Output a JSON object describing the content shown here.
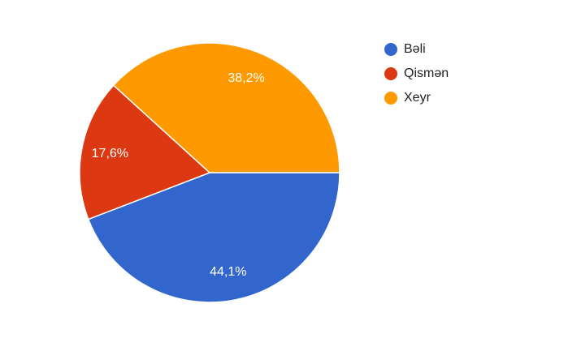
{
  "chart_data": {
    "type": "pie",
    "categories": [
      "Bəli",
      "Qismən",
      "Xeyr"
    ],
    "values": [
      44.1,
      17.6,
      38.2
    ],
    "value_labels": [
      "44,1%",
      "17,6%",
      "38,2%"
    ],
    "colors": [
      "#3366cc",
      "#dc3912",
      "#ff9900"
    ],
    "legend": "right"
  }
}
